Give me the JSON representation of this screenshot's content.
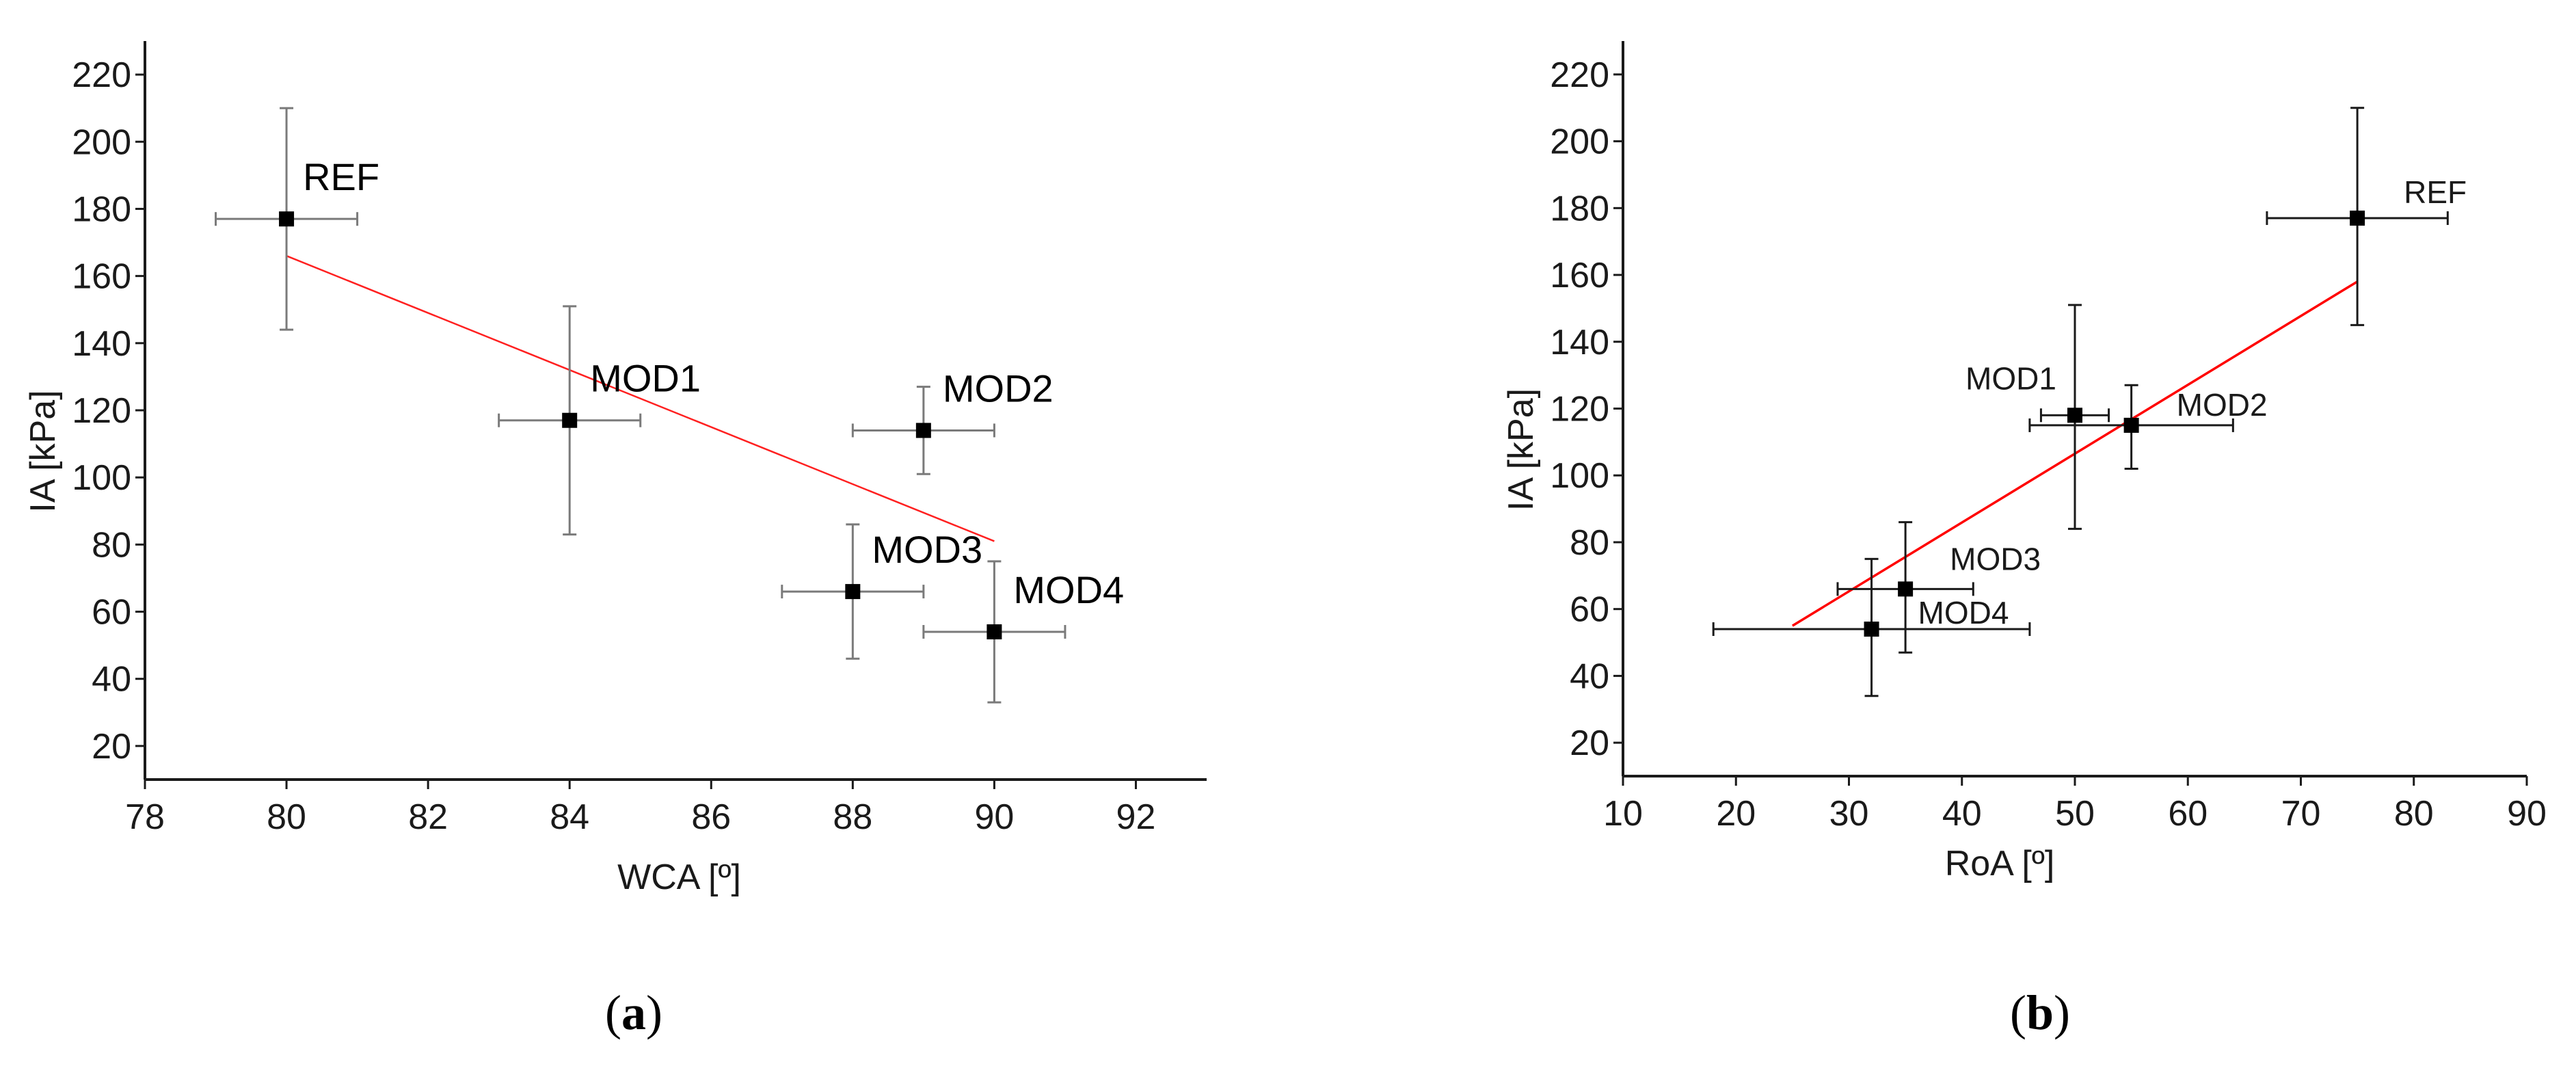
{
  "chart_data": [
    {
      "type": "scatter",
      "panel": "a",
      "caption": {
        "open": "(",
        "letter": "a",
        "close": ")"
      },
      "xlabel": "WCA [º]",
      "ylabel": "IA [kPa]",
      "xlim": [
        78,
        93
      ],
      "ylim": [
        10,
        230
      ],
      "xticks": [
        78,
        80,
        82,
        84,
        86,
        88,
        90,
        92
      ],
      "yticks": [
        20,
        40,
        60,
        80,
        100,
        120,
        140,
        160,
        180,
        200,
        220
      ],
      "grid": false,
      "points": [
        {
          "label": "REF",
          "x": 80,
          "y": 177,
          "xerr": 1,
          "yerr_low": 144,
          "yerr_high": 210
        },
        {
          "label": "MOD1",
          "x": 84,
          "y": 117,
          "xerr": 1,
          "yerr_low": 83,
          "yerr_high": 151
        },
        {
          "label": "MOD2",
          "x": 89,
          "y": 114,
          "xerr": 1,
          "yerr_low": 101,
          "yerr_high": 127
        },
        {
          "label": "MOD3",
          "x": 88,
          "y": 66,
          "xerr": 1,
          "yerr_low": 46,
          "yerr_high": 86
        },
        {
          "label": "MOD4",
          "x": 90,
          "y": 54,
          "xerr": 1,
          "yerr_low": 33,
          "yerr_high": 75
        }
      ],
      "fit_line": {
        "x": [
          80,
          90
        ],
        "y": [
          166,
          81
        ],
        "color": "#ff2020"
      }
    },
    {
      "type": "scatter",
      "panel": "b",
      "caption": {
        "open": "(",
        "letter": "b",
        "close": ")"
      },
      "xlabel": "RoA [º]",
      "ylabel": "IA [kPa]",
      "xlim": [
        10,
        90
      ],
      "ylim": [
        10,
        230
      ],
      "xticks": [
        10,
        20,
        30,
        40,
        50,
        60,
        70,
        80,
        90
      ],
      "yticks": [
        20,
        40,
        60,
        80,
        100,
        120,
        140,
        160,
        180,
        200,
        220
      ],
      "grid": false,
      "points": [
        {
          "label": "REF",
          "x": 75,
          "y": 177,
          "xerr_low": 67,
          "xerr_high": 83,
          "yerr_low": 145,
          "yerr_high": 210
        },
        {
          "label": "MOD1",
          "x": 50,
          "y": 118,
          "xerr_low": 47,
          "xerr_high": 53,
          "yerr_low": 84,
          "yerr_high": 151
        },
        {
          "label": "MOD2",
          "x": 55,
          "y": 115,
          "xerr_low": 46,
          "xerr_high": 64,
          "yerr_low": 102,
          "yerr_high": 127
        },
        {
          "label": "MOD3",
          "x": 35,
          "y": 66,
          "xerr_low": 29,
          "xerr_high": 41,
          "yerr_low": 47,
          "yerr_high": 86
        },
        {
          "label": "MOD4",
          "x": 32,
          "y": 54,
          "xerr_low": 18,
          "xerr_high": 46,
          "yerr_low": 34,
          "yerr_high": 75
        }
      ],
      "fit_line": {
        "x": [
          25,
          75
        ],
        "y": [
          55,
          158
        ],
        "color": "#ff0000"
      }
    }
  ]
}
